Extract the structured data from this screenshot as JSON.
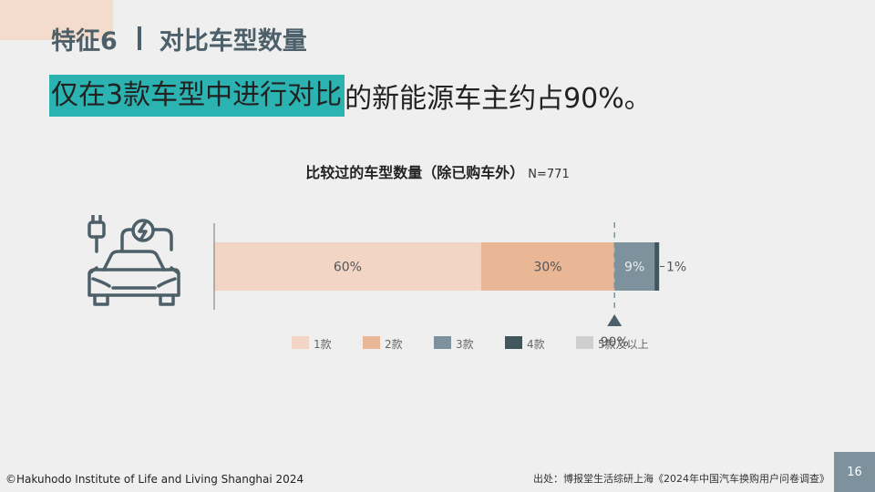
{
  "header": {
    "section_label": "特征6",
    "section_title": "对比车型数量"
  },
  "headline": {
    "highlight": "仅在3款车型中进行对比",
    "rest": "的新能源车主约占90%。"
  },
  "chart_data": {
    "type": "bar",
    "orientation": "horizontal",
    "stacked": true,
    "title": "比较过的车型数量（除已购车外）",
    "sample_note": "N=771",
    "xlim": [
      0,
      100
    ],
    "series": [
      {
        "name": "1款",
        "values": [
          60
        ],
        "label": "60%",
        "color": "#f2d5c5"
      },
      {
        "name": "2款",
        "values": [
          30
        ],
        "label": "30%",
        "color": "#e9b796"
      },
      {
        "name": "3款",
        "values": [
          9
        ],
        "label": "9%",
        "color": "#7d929c"
      },
      {
        "name": "4款",
        "values": [
          1
        ],
        "label": "1%",
        "color": "#42565e"
      },
      {
        "name": "5款及以上",
        "values": [
          0.2
        ],
        "label": "",
        "color": "#cfcfcf"
      }
    ],
    "marker": {
      "value": 90,
      "label": "90%"
    },
    "legend": "bottom"
  },
  "footer": {
    "copyright": "©Hakuhodo Institute of Life and Living Shanghai 2024",
    "source": "出处：博报堂生活综研上海《2024年中国汽车换购用户问卷调查》",
    "page_number": "16"
  },
  "icons": {
    "car": "electric-car-charging-icon"
  }
}
